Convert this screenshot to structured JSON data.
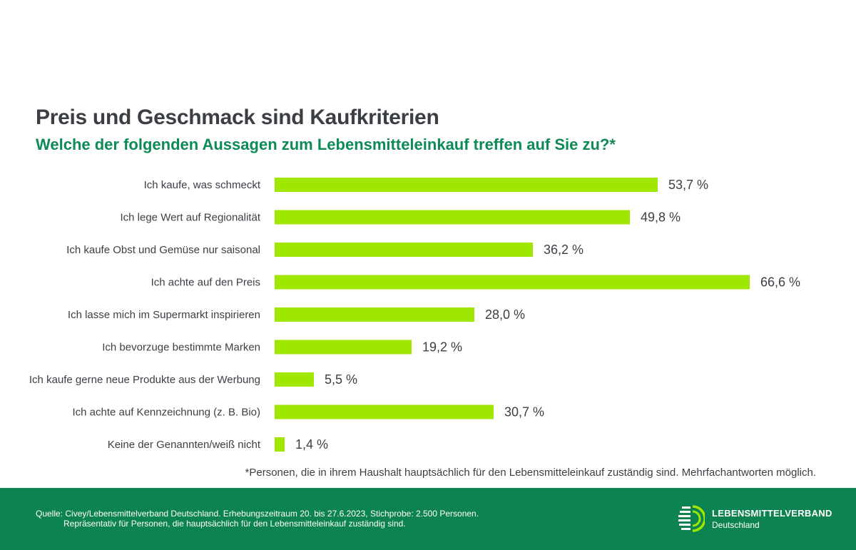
{
  "header": {
    "title": "Preis und Geschmack sind Kaufkriterien",
    "subtitle": "Welche der folgenden Aussagen zum Lebensmitteleinkauf treffen auf Sie zu?*"
  },
  "chart_data": {
    "type": "bar",
    "orientation": "horizontal",
    "title": "Preis und Geschmack sind Kaufkriterien",
    "categories": [
      "Ich kaufe, was schmeckt",
      "Ich lege Wert auf Regionalität",
      "Ich kaufe Obst und Gemüse nur saisonal",
      "Ich achte auf den Preis",
      "Ich lasse mich im Supermarkt inspirieren",
      "Ich bevorzuge bestimmte Marken",
      "Ich kaufe gerne neue Produkte aus der Werbung",
      "Ich achte auf Kennzeichnung (z. B. Bio)",
      "Keine der Genannten/weiß nicht"
    ],
    "values": [
      53.7,
      49.8,
      36.2,
      66.6,
      28.0,
      19.2,
      5.5,
      30.7,
      1.4
    ],
    "value_labels": [
      "53,7 %",
      "49,8 %",
      "36,2 %",
      "66,6 %",
      "28,0 %",
      "19,2 %",
      "5,5 %",
      "30,7 %",
      "1,4 %"
    ],
    "unit": "%",
    "xlim": [
      0,
      100
    ],
    "xlabel": "",
    "ylabel": "",
    "grid": false,
    "bar_color": "#9fe600"
  },
  "footnote": "*Personen, die in ihrem Haushalt hauptsächlich für den Lebensmitteleinkauf zuständig sind. Mehrfachantworten möglich.",
  "footer": {
    "source_line1": "Quelle: Civey/Lebensmittelverband Deutschland. Erhebungszeitraum 20. bis 27.6.2023, Stichprobe: 2.500 Personen.",
    "source_line2": "Repräsentativ für Personen, die hauptsächlich für den Lebensmitteleinkauf zuständig sind.",
    "logo_name": "LEBENSMITTELVERBAND",
    "logo_sub": "Deutschland",
    "background_color": "#0e8352"
  }
}
